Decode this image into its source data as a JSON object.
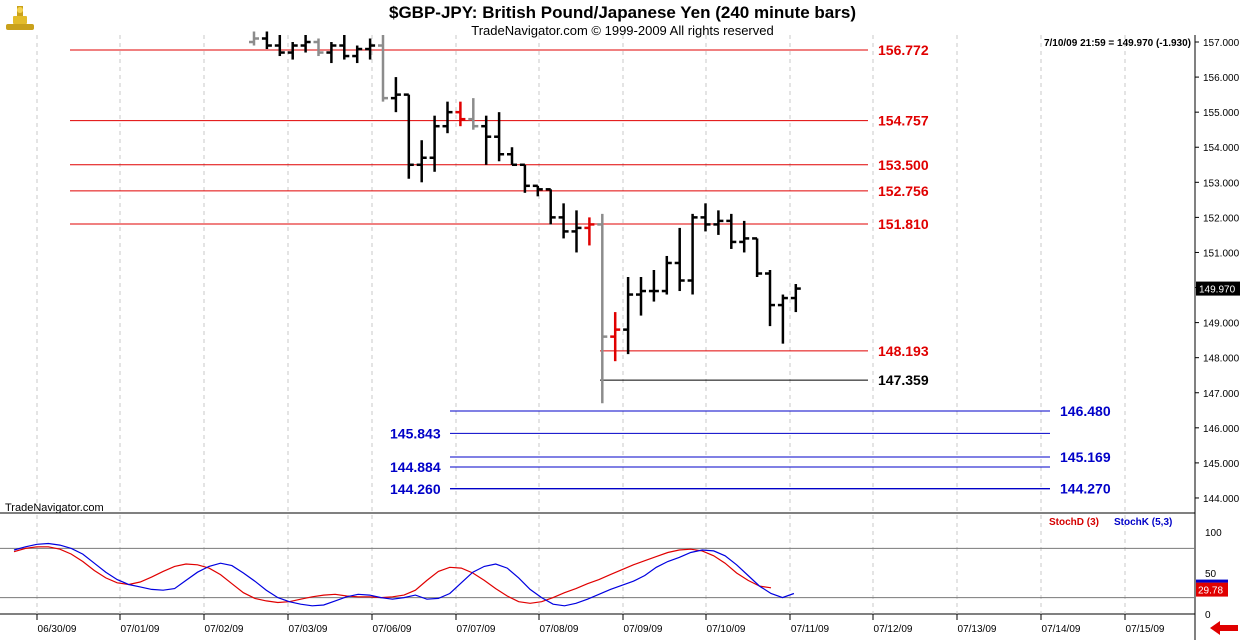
{
  "header": {
    "title": "$GBP-JPY:  British Pound/Japanese Yen  (240 minute bars)",
    "copyright": "TradeNavigator.com © 1999-2009 All rights reserved",
    "readout": "7/10/09 21:59 = 149.970 (-1.930)",
    "watermark": "TradeNavigator.com"
  },
  "colors": {
    "up_bar": "#000000",
    "faded_bar": "#8c8c8c",
    "signal_bar": "#e00000",
    "resistance_line": "#e00000",
    "support_line": "#0000c8",
    "stoch_d": "#e00000",
    "stoch_k": "#0000e0",
    "current_price_bg": "#000000"
  },
  "chart_data": [
    {
      "type": "ohlc",
      "title": "$GBP-JPY:  British Pound/Japanese Yen  (240 minute bars)",
      "ylim": [
        143.6,
        157.2
      ],
      "y_ticks": [
        "157.000",
        "156.000",
        "155.000",
        "154.000",
        "153.000",
        "152.000",
        "151.000",
        "150.000",
        "149.000",
        "148.000",
        "147.000",
        "146.000",
        "145.000",
        "144.000"
      ],
      "x_ticks": [
        "06/30/09",
        "07/01/09",
        "07/02/09",
        "07/03/09",
        "07/06/09",
        "07/07/09",
        "07/08/09",
        "07/09/09",
        "07/10/09",
        "07/11/09",
        "07/12/09",
        "07/13/09",
        "07/14/09",
        "07/15/09"
      ],
      "current_price": "149.970",
      "bars": [
        {
          "o": 157.0,
          "h": 157.3,
          "l": 156.9,
          "c": 157.1,
          "color": "faded"
        },
        {
          "o": 157.1,
          "h": 157.3,
          "l": 156.8,
          "c": 156.9,
          "color": "up"
        },
        {
          "o": 156.9,
          "h": 157.2,
          "l": 156.6,
          "c": 156.7,
          "color": "up"
        },
        {
          "o": 156.7,
          "h": 157.0,
          "l": 156.5,
          "c": 156.9,
          "color": "up"
        },
        {
          "o": 156.9,
          "h": 157.2,
          "l": 156.7,
          "c": 157.0,
          "color": "up"
        },
        {
          "o": 157.0,
          "h": 157.1,
          "l": 156.6,
          "c": 156.7,
          "color": "faded"
        },
        {
          "o": 156.7,
          "h": 157.0,
          "l": 156.4,
          "c": 156.9,
          "color": "up"
        },
        {
          "o": 156.9,
          "h": 157.2,
          "l": 156.5,
          "c": 156.6,
          "color": "up"
        },
        {
          "o": 156.6,
          "h": 156.9,
          "l": 156.4,
          "c": 156.8,
          "color": "up"
        },
        {
          "o": 156.8,
          "h": 157.1,
          "l": 156.5,
          "c": 156.9,
          "color": "up"
        },
        {
          "o": 156.9,
          "h": 157.2,
          "l": 155.3,
          "c": 155.4,
          "color": "faded"
        },
        {
          "o": 155.4,
          "h": 156.0,
          "l": 155.0,
          "c": 155.5,
          "color": "up"
        },
        {
          "o": 155.5,
          "h": 155.5,
          "l": 153.1,
          "c": 153.5,
          "color": "up"
        },
        {
          "o": 153.5,
          "h": 154.2,
          "l": 153.0,
          "c": 153.7,
          "color": "up"
        },
        {
          "o": 153.7,
          "h": 154.9,
          "l": 153.3,
          "c": 154.6,
          "color": "up"
        },
        {
          "o": 154.6,
          "h": 155.3,
          "l": 154.4,
          "c": 155.0,
          "color": "up"
        },
        {
          "o": 155.0,
          "h": 155.3,
          "l": 154.6,
          "c": 154.8,
          "color": "signal"
        },
        {
          "o": 154.8,
          "h": 155.4,
          "l": 154.5,
          "c": 154.6,
          "color": "faded"
        },
        {
          "o": 154.6,
          "h": 154.9,
          "l": 153.5,
          "c": 154.3,
          "color": "up"
        },
        {
          "o": 154.3,
          "h": 155.0,
          "l": 153.6,
          "c": 153.8,
          "color": "up"
        },
        {
          "o": 153.8,
          "h": 154.0,
          "l": 153.5,
          "c": 153.5,
          "color": "up"
        },
        {
          "o": 153.5,
          "h": 153.5,
          "l": 152.7,
          "c": 152.9,
          "color": "up"
        },
        {
          "o": 152.9,
          "h": 152.9,
          "l": 152.6,
          "c": 152.8,
          "color": "up"
        },
        {
          "o": 152.8,
          "h": 152.8,
          "l": 151.8,
          "c": 152.0,
          "color": "up"
        },
        {
          "o": 152.0,
          "h": 152.4,
          "l": 151.4,
          "c": 151.6,
          "color": "up"
        },
        {
          "o": 151.6,
          "h": 152.2,
          "l": 151.0,
          "c": 151.7,
          "color": "up"
        },
        {
          "o": 151.7,
          "h": 152.0,
          "l": 151.2,
          "c": 151.8,
          "color": "signal"
        },
        {
          "o": 151.8,
          "h": 152.1,
          "l": 146.7,
          "c": 148.6,
          "color": "faded"
        },
        {
          "o": 148.6,
          "h": 149.3,
          "l": 147.9,
          "c": 148.8,
          "color": "signal"
        },
        {
          "o": 148.8,
          "h": 150.3,
          "l": 148.1,
          "c": 149.8,
          "color": "up"
        },
        {
          "o": 149.8,
          "h": 150.3,
          "l": 149.2,
          "c": 149.9,
          "color": "up"
        },
        {
          "o": 149.9,
          "h": 150.5,
          "l": 149.6,
          "c": 149.9,
          "color": "up"
        },
        {
          "o": 149.9,
          "h": 150.9,
          "l": 149.8,
          "c": 150.7,
          "color": "up"
        },
        {
          "o": 150.7,
          "h": 151.7,
          "l": 149.9,
          "c": 150.2,
          "color": "up"
        },
        {
          "o": 150.2,
          "h": 152.1,
          "l": 149.8,
          "c": 152.0,
          "color": "up"
        },
        {
          "o": 152.0,
          "h": 152.4,
          "l": 151.6,
          "c": 151.8,
          "color": "up"
        },
        {
          "o": 151.8,
          "h": 152.2,
          "l": 151.5,
          "c": 151.9,
          "color": "up"
        },
        {
          "o": 151.9,
          "h": 152.1,
          "l": 151.1,
          "c": 151.3,
          "color": "up"
        },
        {
          "o": 151.3,
          "h": 151.9,
          "l": 151.0,
          "c": 151.4,
          "color": "up"
        },
        {
          "o": 151.4,
          "h": 151.4,
          "l": 150.3,
          "c": 150.4,
          "color": "up"
        },
        {
          "o": 150.4,
          "h": 150.5,
          "l": 148.9,
          "c": 149.5,
          "color": "up"
        },
        {
          "o": 149.5,
          "h": 149.8,
          "l": 148.4,
          "c": 149.7,
          "color": "up"
        },
        {
          "o": 149.7,
          "h": 150.1,
          "l": 149.3,
          "c": 149.97,
          "color": "up"
        }
      ],
      "levels_resistance": [
        {
          "value": 156.772,
          "label": "156.772"
        },
        {
          "value": 154.757,
          "label": "154.757"
        },
        {
          "value": 153.5,
          "label": "153.500"
        },
        {
          "value": 152.756,
          "label": "152.756"
        },
        {
          "value": 151.81,
          "label": "151.810"
        },
        {
          "value": 148.193,
          "label": "148.193"
        }
      ],
      "level_black": {
        "value": 147.359,
        "label": "147.359"
      },
      "levels_support": [
        {
          "value": 146.48,
          "label": "146.480",
          "side": "right"
        },
        {
          "value": 145.843,
          "label": "145.843",
          "side": "left"
        },
        {
          "value": 145.169,
          "label": "145.169",
          "side": "right"
        },
        {
          "value": 144.884,
          "label": "144.884",
          "side": "left"
        },
        {
          "value": 144.27,
          "label": "144.270",
          "side": "right"
        },
        {
          "value": 144.26,
          "label": "144.260",
          "side": "left"
        }
      ]
    },
    {
      "type": "line",
      "title": "",
      "ylim": [
        0,
        100
      ],
      "y_ticks": [
        "100",
        "50",
        "0"
      ],
      "reference_lines": [
        80,
        20
      ],
      "current_value": "29.78",
      "series": [
        {
          "name": "StochD (3)",
          "color": "red",
          "values": [
            76,
            80,
            82,
            82,
            79,
            73,
            64,
            53,
            44,
            38,
            36,
            39,
            45,
            52,
            58,
            61,
            60,
            56,
            48,
            37,
            26,
            19,
            16,
            14,
            15,
            18,
            21,
            23,
            24,
            22,
            21,
            21,
            20,
            21,
            23,
            29,
            41,
            52,
            57,
            56,
            50,
            41,
            31,
            22,
            15,
            13,
            15,
            20,
            26,
            31,
            37,
            42,
            48,
            54,
            60,
            65,
            70,
            75,
            78,
            79,
            77,
            71,
            62,
            50,
            41,
            34,
            32
          ]
        },
        {
          "name": "StochK (5,3)",
          "color": "blue",
          "values": [
            78,
            82,
            85,
            86,
            84,
            80,
            73,
            62,
            51,
            42,
            36,
            33,
            30,
            29,
            31,
            41,
            51,
            58,
            62,
            59,
            50,
            40,
            29,
            20,
            15,
            12,
            10,
            11,
            16,
            21,
            24,
            23,
            20,
            18,
            20,
            23,
            18,
            19,
            25,
            38,
            51,
            58,
            61,
            56,
            44,
            30,
            20,
            12,
            10,
            13,
            18,
            24,
            30,
            35,
            40,
            47,
            57,
            64,
            69,
            75,
            78,
            77,
            71,
            60,
            47,
            34,
            25,
            20,
            25
          ]
        }
      ]
    }
  ]
}
